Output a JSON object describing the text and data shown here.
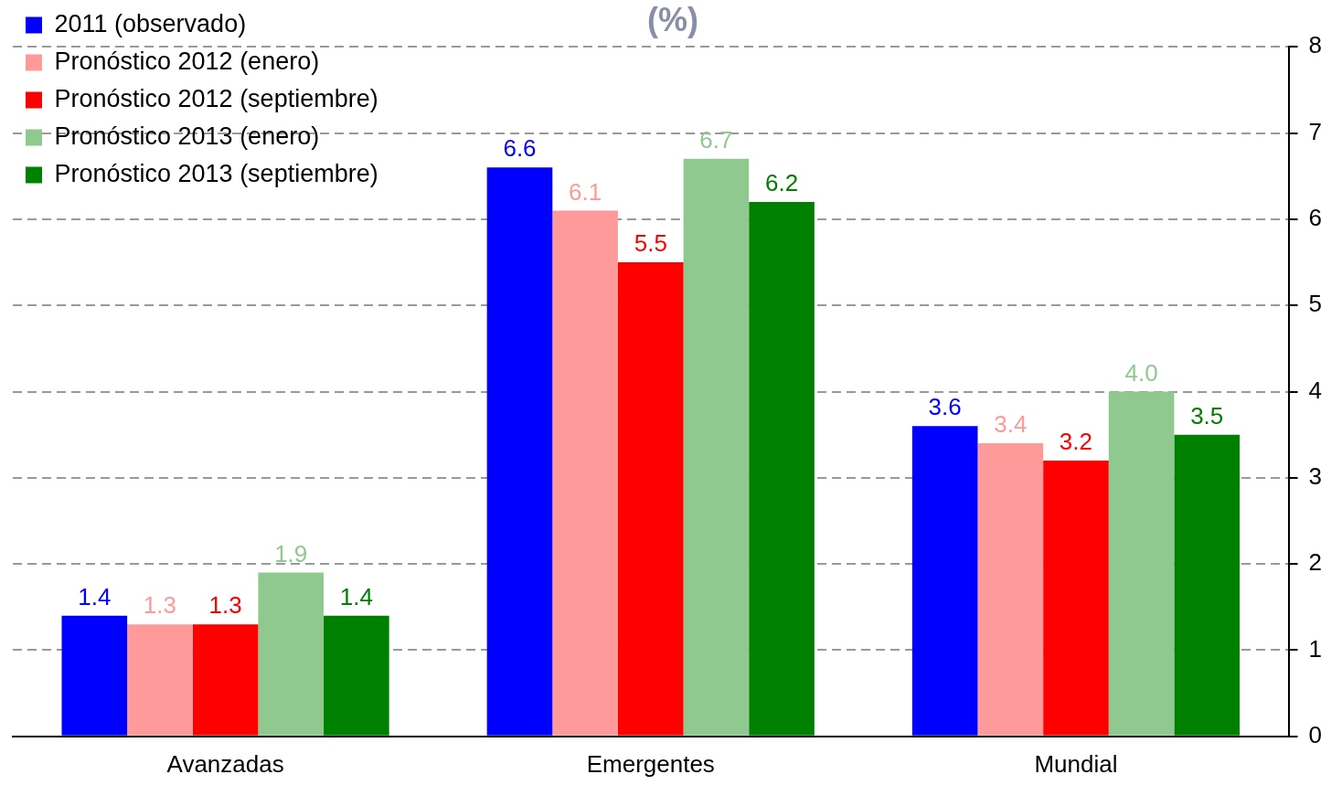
{
  "chart_data": {
    "type": "bar",
    "title": "(%)",
    "categories": [
      "Avanzadas",
      "Emergentes",
      "Mundial"
    ],
    "series": [
      {
        "name": "2011 (observado)",
        "color": "#0000ff",
        "values": [
          1.4,
          6.6,
          3.6
        ],
        "value_labels": [
          "1.4",
          "6.6",
          "3.6"
        ]
      },
      {
        "name": "Pronóstico 2012 (enero)",
        "color": "#ff9a9a",
        "values": [
          1.3,
          6.1,
          3.4
        ],
        "value_labels": [
          "1.3",
          "6.1",
          "3.4"
        ]
      },
      {
        "name": "Pronóstico 2012 (septiembre)",
        "color": "#ff0000",
        "values": [
          1.3,
          5.5,
          3.2
        ],
        "value_labels": [
          "1.3",
          "5.5",
          "3.2"
        ]
      },
      {
        "name": "Pronóstico 2013 (enero)",
        "color": "#8fc98f",
        "values": [
          1.9,
          6.7,
          4.0
        ],
        "value_labels": [
          "1.9",
          "6.7",
          "4.0"
        ]
      },
      {
        "name": "Pronóstico 2013 (septiembre)",
        "color": "#008000",
        "values": [
          1.4,
          6.2,
          3.5
        ],
        "value_labels": [
          "1.4",
          "6.2",
          "3.5"
        ]
      }
    ],
    "ylim": [
      0,
      8
    ],
    "yticks": [
      0,
      1,
      2,
      3,
      4,
      5,
      6,
      7,
      8
    ],
    "grid": "y",
    "legend": "top left"
  }
}
